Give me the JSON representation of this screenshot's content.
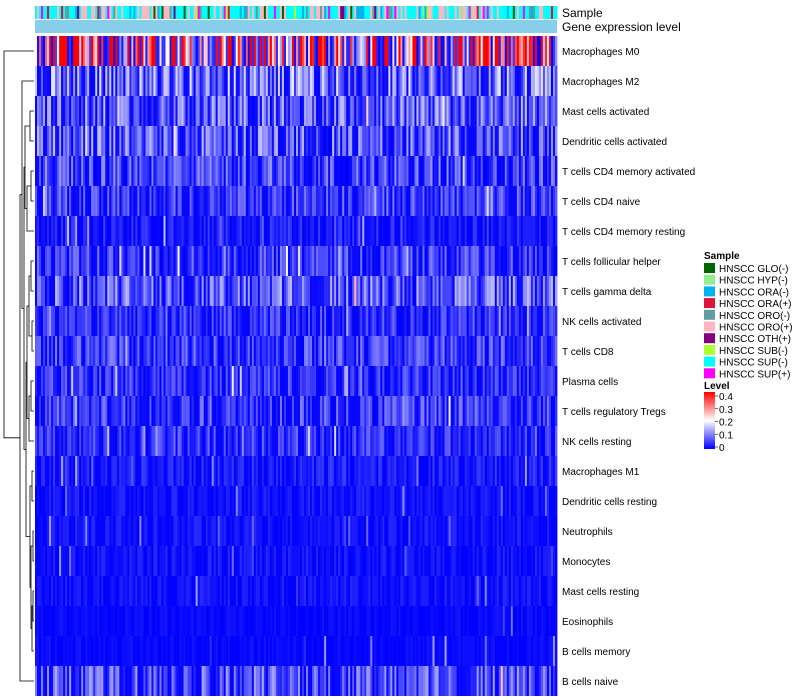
{
  "chart_data": {
    "type": "heatmap",
    "title": "",
    "annotation_tracks": [
      "Sample",
      "Gene expression level"
    ],
    "rows": [
      "Macrophages M0",
      "Macrophages M2",
      "Mast cells activated",
      "Dendritic cells activated",
      "T cells CD4 memory activated",
      "T cells CD4 naive",
      "T cells CD4 memory resting",
      "T cells follicular helper",
      "T cells gamma delta",
      "NK cells activated",
      "T cells CD8",
      "Plasma cells",
      "T cells regulatory  Tregs",
      "NK cells resting",
      "Macrophages M1",
      "Dendritic cells resting",
      "Neutrophils",
      "Monocytes",
      "Mast cells resting",
      "Eosinophils",
      "B cells memory",
      "B cells naive"
    ],
    "row_mean_level": [
      0.33,
      0.11,
      0.09,
      0.09,
      0.07,
      0.06,
      0.03,
      0.06,
      0.09,
      0.05,
      0.06,
      0.05,
      0.06,
      0.05,
      0.03,
      0.02,
      0.02,
      0.02,
      0.02,
      0.01,
      0.01,
      0.08
    ],
    "n_samples": 260,
    "sample_legend": {
      "title": "Sample",
      "entries": [
        {
          "label": "HNSCC GLO(-)",
          "color": "#006400"
        },
        {
          "label": "HNSCC HYP(-)",
          "color": "#90ee90"
        },
        {
          "label": "HNSCC ORA(-)",
          "color": "#00b2ee"
        },
        {
          "label": "HNSCC ORA(+)",
          "color": "#dc143c"
        },
        {
          "label": "HNSCC ORO(-)",
          "color": "#5f9ea0"
        },
        {
          "label": "HNSCC ORO(+)",
          "color": "#ffb6c1"
        },
        {
          "label": "HNSCC OTH(+)",
          "color": "#800080"
        },
        {
          "label": "HNSCC SUB(-)",
          "color": "#adff2f"
        },
        {
          "label": "HNSCC SUP(-)",
          "color": "#00ffff"
        },
        {
          "label": "HNSCC SUP(+)",
          "color": "#ff00ff"
        }
      ]
    },
    "sample_weights": [
      0.03,
      0.02,
      0.12,
      0.03,
      0.05,
      0.22,
      0.01,
      0.02,
      0.45,
      0.05
    ],
    "level_legend": {
      "title": "Level",
      "ticks": [
        "0.4",
        "0.3",
        "0.2",
        "0.1",
        "0"
      ],
      "range": [
        0,
        0.4
      ]
    },
    "colors": {
      "low": "#0000ff",
      "mid": "#ffffff",
      "high": "#ff0000",
      "expression_bar": "#87ceeb"
    }
  }
}
